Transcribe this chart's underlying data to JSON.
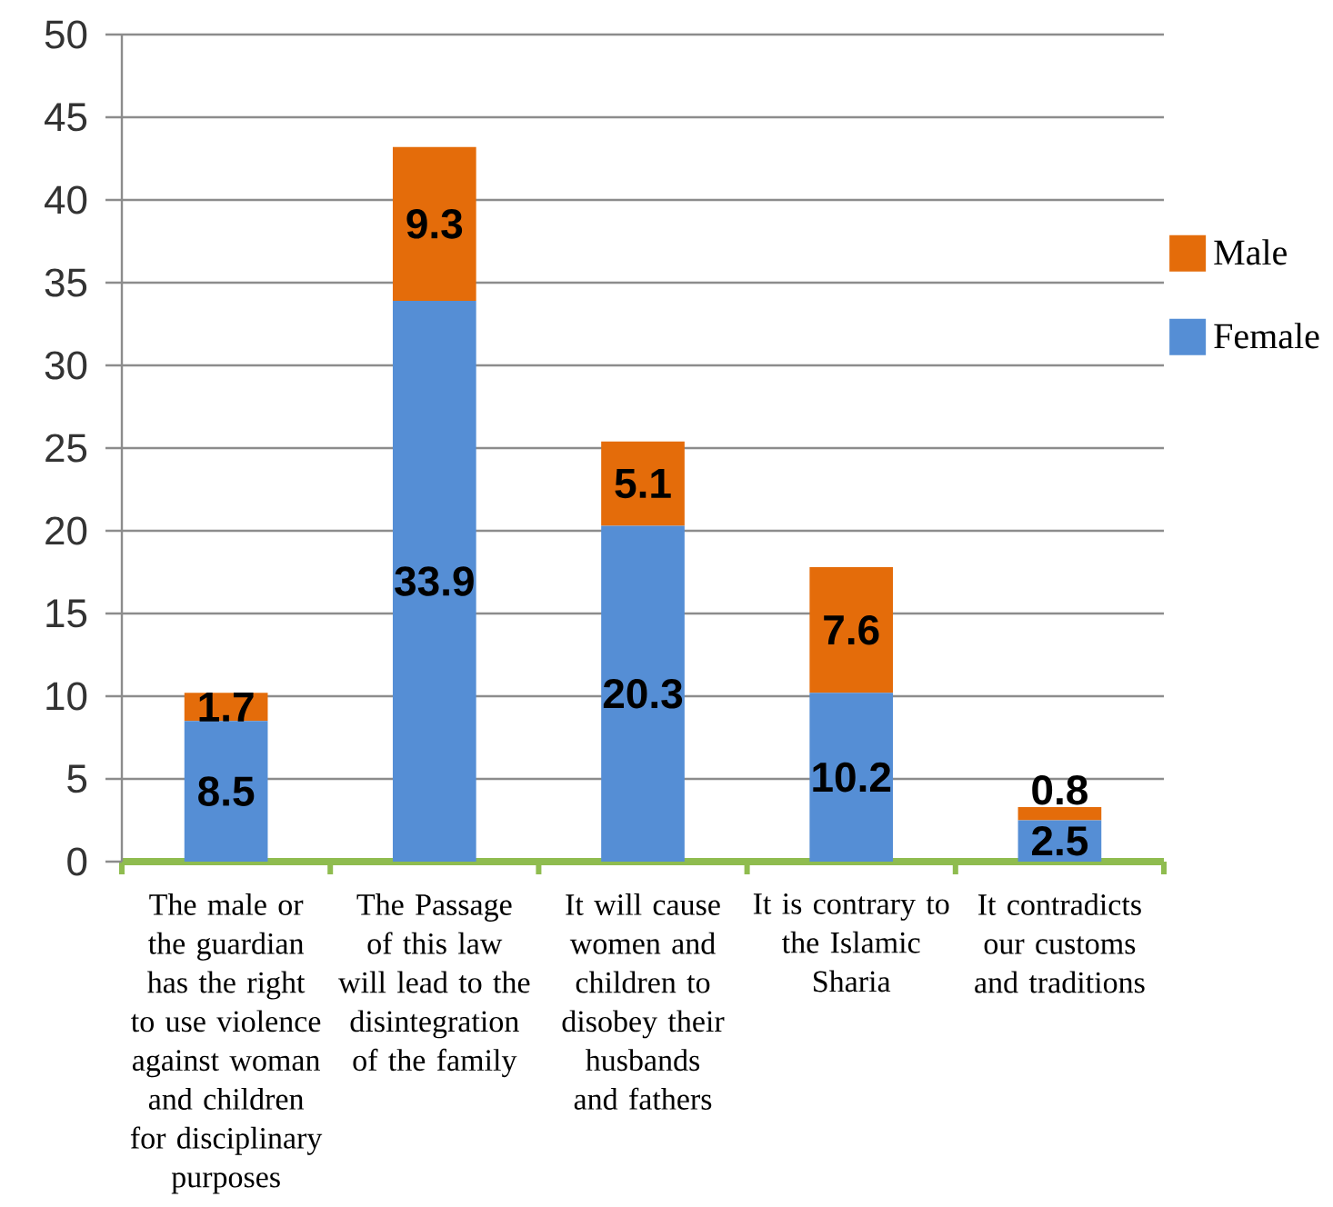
{
  "chart_data": {
    "type": "bar",
    "stacked": true,
    "categories": [
      "The male or the guardian has the right to use violence against woman and children for disciplinary purposes",
      "The Passage of this law will lead to the disintegration of the family",
      "It will cause women and children to disobey their husbands and fathers",
      "It is contrary to the Islamic Sharia",
      "It contradicts our customs and traditions"
    ],
    "series": [
      {
        "name": "Female",
        "color": "#558ed5",
        "values": [
          8.5,
          33.9,
          20.3,
          10.2,
          2.5
        ]
      },
      {
        "name": "Male",
        "color": "#e46c0a",
        "values": [
          1.7,
          9.3,
          5.1,
          7.6,
          0.8
        ]
      }
    ],
    "ylim": [
      0,
      50
    ],
    "yticks": [
      0,
      5,
      10,
      15,
      20,
      25,
      30,
      35,
      40,
      45,
      50
    ],
    "grid": "y",
    "legend": "right",
    "data_labels": true
  }
}
